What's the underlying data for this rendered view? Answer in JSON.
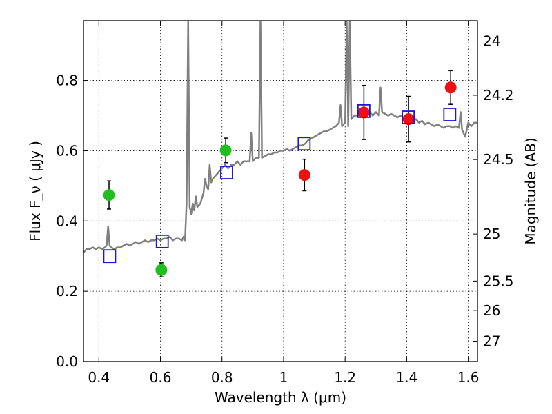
{
  "chart_data": {
    "type": "scatter",
    "title": "",
    "xlabel": "Wavelength  λ (μm)",
    "ylabel": "Flux  F_ν  ( μJy )",
    "y2label": "Magnitude (AB)",
    "xlim": [
      0.35,
      1.63
    ],
    "ylim": [
      0.0,
      0.97
    ],
    "grid": true,
    "x_ticks": [
      {
        "value": 0.4,
        "label": "0.4"
      },
      {
        "value": 0.6,
        "label": "0.6"
      },
      {
        "value": 0.8,
        "label": "0.8"
      },
      {
        "value": 1.0,
        "label": "1"
      },
      {
        "value": 1.2,
        "label": "1.2"
      },
      {
        "value": 1.4,
        "label": "1.4"
      },
      {
        "value": 1.6,
        "label": "1.6"
      }
    ],
    "y_ticks": [
      {
        "value": 0.0,
        "label": "0.0"
      },
      {
        "value": 0.2,
        "label": "0.2"
      },
      {
        "value": 0.4,
        "label": "0.4"
      },
      {
        "value": 0.6,
        "label": "0.6"
      },
      {
        "value": 0.8,
        "label": "0.8"
      }
    ],
    "y2_ticks": [
      {
        "flux": 0.912,
        "label": "24"
      },
      {
        "flux": 0.758,
        "label": "24.2"
      },
      {
        "flux": 0.575,
        "label": "24.5"
      },
      {
        "flux": 0.363,
        "label": "25"
      },
      {
        "flux": 0.229,
        "label": "25.5"
      },
      {
        "flux": 0.145,
        "label": "26"
      },
      {
        "flux": 0.058,
        "label": "27"
      }
    ],
    "series": [
      {
        "type": "line",
        "color": "#808080",
        "points": [
          [
            0.35,
            0.31
          ],
          [
            0.36,
            0.32
          ],
          [
            0.37,
            0.32
          ],
          [
            0.38,
            0.325
          ],
          [
            0.39,
            0.32
          ],
          [
            0.4,
            0.325
          ],
          [
            0.41,
            0.32
          ],
          [
            0.42,
            0.325
          ],
          [
            0.425,
            0.33
          ],
          [
            0.43,
            0.385
          ],
          [
            0.435,
            0.33
          ],
          [
            0.44,
            0.325
          ],
          [
            0.45,
            0.32
          ],
          [
            0.46,
            0.325
          ],
          [
            0.47,
            0.325
          ],
          [
            0.48,
            0.33
          ],
          [
            0.49,
            0.335
          ],
          [
            0.5,
            0.33
          ],
          [
            0.51,
            0.335
          ],
          [
            0.52,
            0.34
          ],
          [
            0.53,
            0.335
          ],
          [
            0.54,
            0.34
          ],
          [
            0.55,
            0.345
          ],
          [
            0.56,
            0.34
          ],
          [
            0.57,
            0.345
          ],
          [
            0.58,
            0.345
          ],
          [
            0.59,
            0.35
          ],
          [
            0.6,
            0.345
          ],
          [
            0.61,
            0.35
          ],
          [
            0.62,
            0.35
          ],
          [
            0.63,
            0.355
          ],
          [
            0.64,
            0.345
          ],
          [
            0.65,
            0.35
          ],
          [
            0.66,
            0.35
          ],
          [
            0.67,
            0.345
          ],
          [
            0.675,
            0.355
          ],
          [
            0.68,
            0.345
          ],
          [
            0.685,
            0.45
          ],
          [
            0.69,
            0.97
          ],
          [
            0.695,
            0.44
          ],
          [
            0.7,
            0.42
          ],
          [
            0.705,
            0.45
          ],
          [
            0.71,
            0.43
          ],
          [
            0.715,
            0.47
          ],
          [
            0.72,
            0.44
          ],
          [
            0.73,
            0.45
          ],
          [
            0.74,
            0.48
          ],
          [
            0.745,
            0.52
          ],
          [
            0.75,
            0.5
          ],
          [
            0.755,
            0.49
          ],
          [
            0.76,
            0.56
          ],
          [
            0.765,
            0.51
          ],
          [
            0.77,
            0.52
          ],
          [
            0.78,
            0.53
          ],
          [
            0.79,
            0.54
          ],
          [
            0.8,
            0.55
          ],
          [
            0.81,
            0.56
          ],
          [
            0.82,
            0.55
          ],
          [
            0.83,
            0.56
          ],
          [
            0.84,
            0.56
          ],
          [
            0.85,
            0.57
          ],
          [
            0.86,
            0.56
          ],
          [
            0.87,
            0.57
          ],
          [
            0.88,
            0.57
          ],
          [
            0.89,
            0.57
          ],
          [
            0.895,
            0.65
          ],
          [
            0.9,
            0.57
          ],
          [
            0.91,
            0.58
          ],
          [
            0.92,
            0.58
          ],
          [
            0.925,
            0.97
          ],
          [
            0.93,
            0.58
          ],
          [
            0.94,
            0.585
          ],
          [
            0.95,
            0.59
          ],
          [
            0.96,
            0.59
          ],
          [
            0.97,
            0.595
          ],
          [
            0.98,
            0.595
          ],
          [
            0.99,
            0.6
          ],
          [
            1.0,
            0.6
          ],
          [
            1.01,
            0.605
          ],
          [
            1.02,
            0.6
          ],
          [
            1.03,
            0.605
          ],
          [
            1.04,
            0.61
          ],
          [
            1.05,
            0.615
          ],
          [
            1.06,
            0.615
          ],
          [
            1.07,
            0.62
          ],
          [
            1.08,
            0.63
          ],
          [
            1.09,
            0.635
          ],
          [
            1.1,
            0.64
          ],
          [
            1.11,
            0.645
          ],
          [
            1.12,
            0.65
          ],
          [
            1.13,
            0.655
          ],
          [
            1.14,
            0.655
          ],
          [
            1.15,
            0.66
          ],
          [
            1.16,
            0.665
          ],
          [
            1.17,
            0.67
          ],
          [
            1.18,
            0.68
          ],
          [
            1.185,
            0.73
          ],
          [
            1.19,
            0.67
          ],
          [
            1.2,
            0.68
          ],
          [
            1.205,
            0.97
          ],
          [
            1.21,
            0.67
          ],
          [
            1.215,
            0.97
          ],
          [
            1.22,
            0.69
          ],
          [
            1.23,
            0.7
          ],
          [
            1.24,
            0.7
          ],
          [
            1.25,
            0.705
          ],
          [
            1.26,
            0.71
          ],
          [
            1.27,
            0.705
          ],
          [
            1.28,
            0.71
          ],
          [
            1.29,
            0.7
          ],
          [
            1.3,
            0.71
          ],
          [
            1.31,
            0.7
          ],
          [
            1.315,
            0.78
          ],
          [
            1.32,
            0.71
          ],
          [
            1.33,
            0.705
          ],
          [
            1.34,
            0.7
          ],
          [
            1.35,
            0.705
          ],
          [
            1.36,
            0.7
          ],
          [
            1.37,
            0.695
          ],
          [
            1.38,
            0.7
          ],
          [
            1.39,
            0.695
          ],
          [
            1.4,
            0.69
          ],
          [
            1.41,
            0.695
          ],
          [
            1.42,
            0.685
          ],
          [
            1.43,
            0.69
          ],
          [
            1.44,
            0.68
          ],
          [
            1.45,
            0.685
          ],
          [
            1.46,
            0.675
          ],
          [
            1.47,
            0.68
          ],
          [
            1.48,
            0.675
          ],
          [
            1.49,
            0.67
          ],
          [
            1.5,
            0.675
          ],
          [
            1.51,
            0.67
          ],
          [
            1.52,
            0.665
          ],
          [
            1.53,
            0.67
          ],
          [
            1.54,
            0.67
          ],
          [
            1.55,
            0.665
          ],
          [
            1.56,
            0.67
          ],
          [
            1.57,
            0.665
          ],
          [
            1.575,
            0.71
          ],
          [
            1.58,
            0.66
          ],
          [
            1.59,
            0.64
          ],
          [
            1.6,
            0.68
          ],
          [
            1.61,
            0.67
          ],
          [
            1.62,
            0.68
          ],
          [
            1.63,
            0.68
          ]
        ]
      },
      {
        "type": "points",
        "marker": "circle",
        "color": "#1fbf1f",
        "points": [
          {
            "x": 0.433,
            "y": 0.474,
            "err": 0.04
          },
          {
            "x": 0.603,
            "y": 0.261,
            "err": 0.02
          },
          {
            "x": 0.812,
            "y": 0.601,
            "err": 0.035
          }
        ]
      },
      {
        "type": "points",
        "marker": "circle",
        "color": "#ee1111",
        "points": [
          {
            "x": 1.068,
            "y": 0.531,
            "err": 0.045
          },
          {
            "x": 1.261,
            "y": 0.709,
            "err": 0.077
          },
          {
            "x": 1.406,
            "y": 0.69,
            "err": 0.065
          },
          {
            "x": 1.543,
            "y": 0.78,
            "err": 0.048
          }
        ]
      },
      {
        "type": "points",
        "marker": "square",
        "color": "#1a1acc",
        "points": [
          {
            "x": 0.435,
            "y": 0.3
          },
          {
            "x": 0.606,
            "y": 0.342
          },
          {
            "x": 0.815,
            "y": 0.538
          },
          {
            "x": 1.067,
            "y": 0.62
          },
          {
            "x": 1.261,
            "y": 0.713
          },
          {
            "x": 1.405,
            "y": 0.695
          },
          {
            "x": 1.54,
            "y": 0.703
          }
        ]
      }
    ]
  }
}
